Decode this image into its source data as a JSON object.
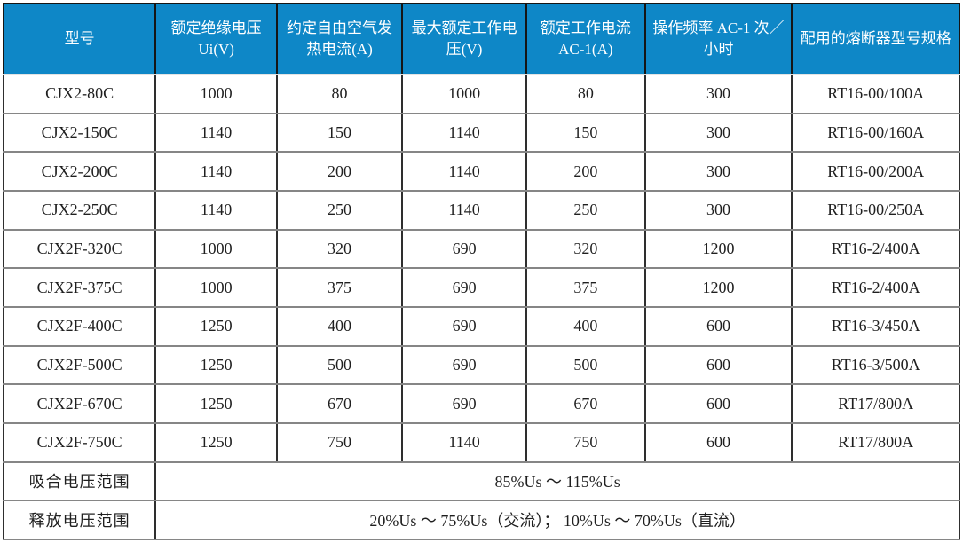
{
  "table": {
    "header": {
      "bg_color": "#0e87c7",
      "text_color": "#ffffff",
      "columns": [
        {
          "label": "型号"
        },
        {
          "label": "额定绝缘电压 Ui(V)"
        },
        {
          "label": "约定自由空气发热电流(A)"
        },
        {
          "label": "最大额定工作电压(V)"
        },
        {
          "label": "额定工作电流 AC-1(A)"
        },
        {
          "label": "操作频率 AC-1 次／小时"
        },
        {
          "label": "配用的熔断器型号规格"
        }
      ]
    },
    "rows": [
      {
        "model": "CJX2-80C",
        "values": [
          "1000",
          "80",
          "1000",
          "80",
          "300",
          "RT16-00/100A"
        ]
      },
      {
        "model": "CJX2-150C",
        "values": [
          "1140",
          "150",
          "1140",
          "150",
          "300",
          "RT16-00/160A"
        ]
      },
      {
        "model": "CJX2-200C",
        "values": [
          "1140",
          "200",
          "1140",
          "200",
          "300",
          "RT16-00/200A"
        ]
      },
      {
        "model": "CJX2-250C",
        "values": [
          "1140",
          "250",
          "1140",
          "250",
          "300",
          "RT16-00/250A"
        ]
      },
      {
        "model": "CJX2F-320C",
        "values": [
          "1000",
          "320",
          "690",
          "320",
          "1200",
          "RT16-2/400A"
        ]
      },
      {
        "model": "CJX2F-375C",
        "values": [
          "1000",
          "375",
          "690",
          "375",
          "1200",
          "RT16-2/400A"
        ]
      },
      {
        "model": "CJX2F-400C",
        "values": [
          "1250",
          "400",
          "690",
          "400",
          "600",
          "RT16-3/450A"
        ]
      },
      {
        "model": "CJX2F-500C",
        "values": [
          "1250",
          "500",
          "690",
          "500",
          "600",
          "RT16-3/500A"
        ]
      },
      {
        "model": "CJX2F-670C",
        "values": [
          "1250",
          "670",
          "690",
          "670",
          "600",
          "RT17/800A"
        ]
      },
      {
        "model": "CJX2F-750C",
        "values": [
          "1250",
          "750",
          "1140",
          "750",
          "600",
          "RT17/800A"
        ]
      }
    ],
    "footer_rows": [
      {
        "label": "吸合电压范围",
        "value": "85%Us ～ 115%Us"
      },
      {
        "label": "释放电压范围",
        "value": "20%Us ～ 75%Us（交流）； 10%Us ～ 70%Us（直流）"
      }
    ]
  }
}
